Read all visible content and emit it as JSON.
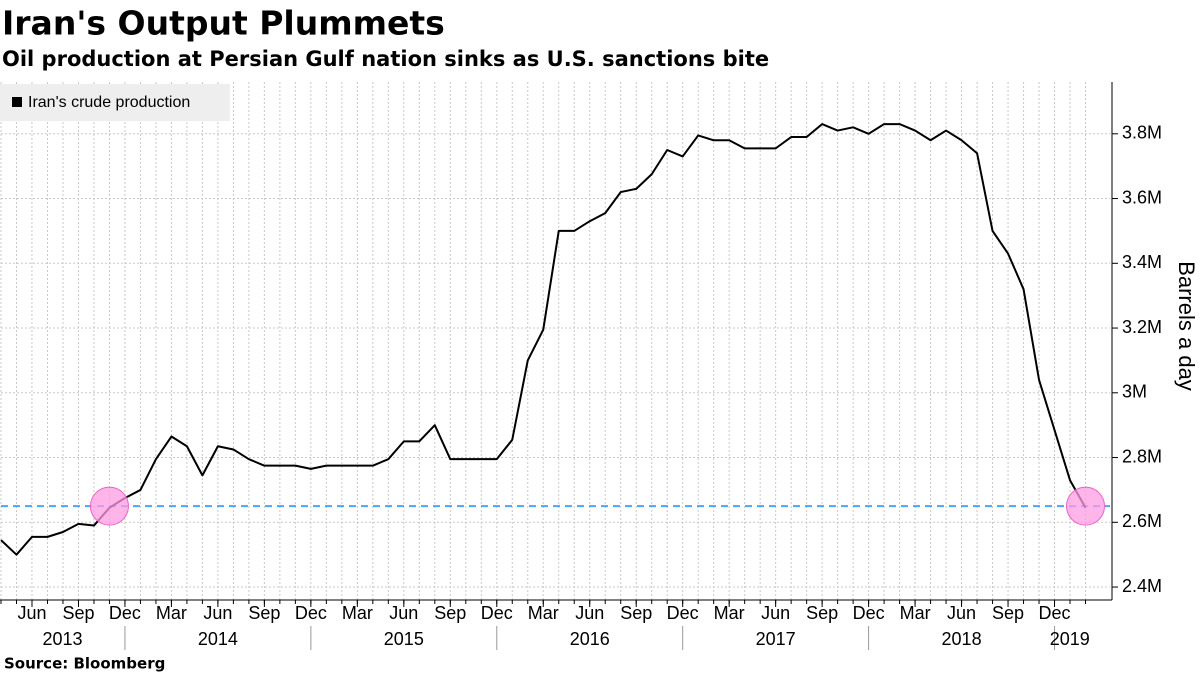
{
  "chart_data": {
    "type": "line",
    "title": "Iran's Output Plummets",
    "subtitle": "Oil production at Persian Gulf nation sinks as U.S. sanctions bite",
    "source": "Source: Bloomberg",
    "y_label": "Barrels a day",
    "x": [
      "2013-04",
      "2013-05",
      "2013-06",
      "2013-07",
      "2013-08",
      "2013-09",
      "2013-10",
      "2013-11",
      "2013-12",
      "2014-01",
      "2014-02",
      "2014-03",
      "2014-04",
      "2014-05",
      "2014-06",
      "2014-07",
      "2014-08",
      "2014-09",
      "2014-10",
      "2014-11",
      "2014-12",
      "2015-01",
      "2015-02",
      "2015-03",
      "2015-04",
      "2015-05",
      "2015-06",
      "2015-07",
      "2015-08",
      "2015-09",
      "2015-10",
      "2015-11",
      "2015-12",
      "2016-01",
      "2016-02",
      "2016-03",
      "2016-04",
      "2016-05",
      "2016-06",
      "2016-07",
      "2016-08",
      "2016-09",
      "2016-10",
      "2016-11",
      "2016-12",
      "2017-01",
      "2017-02",
      "2017-03",
      "2017-04",
      "2017-05",
      "2017-06",
      "2017-07",
      "2017-08",
      "2017-09",
      "2017-10",
      "2017-11",
      "2017-12",
      "2018-01",
      "2018-02",
      "2018-03",
      "2018-04",
      "2018-05",
      "2018-06",
      "2018-07",
      "2018-08",
      "2018-09",
      "2018-10",
      "2018-11",
      "2018-12",
      "2019-01",
      "2019-02"
    ],
    "series": [
      {
        "name": "Iran's crude production",
        "color": "#000000",
        "values": [
          2545000,
          2500000,
          2555000,
          2555000,
          2570000,
          2595000,
          2590000,
          2645000,
          2675000,
          2700000,
          2795000,
          2865000,
          2835000,
          2745000,
          2835000,
          2825000,
          2795000,
          2775000,
          2775000,
          2775000,
          2765000,
          2775000,
          2775000,
          2775000,
          2775000,
          2795000,
          2850000,
          2850000,
          2900000,
          2795000,
          2795000,
          2795000,
          2795000,
          2855000,
          3100000,
          3195000,
          3500000,
          3500000,
          3530000,
          3555000,
          3620000,
          3630000,
          3675000,
          3750000,
          3730000,
          3795000,
          3780000,
          3780000,
          3755000,
          3755000,
          3755000,
          3790000,
          3790000,
          3830000,
          3810000,
          3820000,
          3800000,
          3830000,
          3830000,
          3810000,
          3780000,
          3810000,
          3780000,
          3740000,
          3500000,
          3430000,
          3320000,
          3040000,
          2885000,
          2730000,
          2645000
        ]
      }
    ],
    "xlim": [
      "2013-04",
      "2019-03"
    ],
    "xticks": [
      {
        "value": "2013-06",
        "label": "Jun"
      },
      {
        "value": "2013-09",
        "label": "Sep"
      },
      {
        "value": "2013-12",
        "label": "Dec"
      },
      {
        "value": "2014-03",
        "label": "Mar"
      },
      {
        "value": "2014-06",
        "label": "Jun"
      },
      {
        "value": "2014-09",
        "label": "Sep"
      },
      {
        "value": "2014-12",
        "label": "Dec"
      },
      {
        "value": "2015-03",
        "label": "Mar"
      },
      {
        "value": "2015-06",
        "label": "Jun"
      },
      {
        "value": "2015-09",
        "label": "Sep"
      },
      {
        "value": "2015-12",
        "label": "Dec"
      },
      {
        "value": "2016-03",
        "label": "Mar"
      },
      {
        "value": "2016-06",
        "label": "Jun"
      },
      {
        "value": "2016-09",
        "label": "Sep"
      },
      {
        "value": "2016-12",
        "label": "Dec"
      },
      {
        "value": "2017-03",
        "label": "Mar"
      },
      {
        "value": "2017-06",
        "label": "Jun"
      },
      {
        "value": "2017-09",
        "label": "Sep"
      },
      {
        "value": "2017-12",
        "label": "Dec"
      },
      {
        "value": "2018-03",
        "label": "Mar"
      },
      {
        "value": "2018-06",
        "label": "Jun"
      },
      {
        "value": "2018-09",
        "label": "Sep"
      },
      {
        "value": "2018-12",
        "label": "Dec"
      }
    ],
    "years": [
      "2013",
      "2014",
      "2015",
      "2016",
      "2017",
      "2018",
      "2019"
    ],
    "ylim": [
      2360000,
      3960000
    ],
    "yticks": [
      {
        "value": 2400000,
        "label": "2.4M"
      },
      {
        "value": 2600000,
        "label": "2.6M"
      },
      {
        "value": 2800000,
        "label": "2.8M"
      },
      {
        "value": 3000000,
        "label": "3M"
      },
      {
        "value": 3200000,
        "label": "3.2M"
      },
      {
        "value": 3400000,
        "label": "3.4M"
      },
      {
        "value": 3600000,
        "label": "3.6M"
      },
      {
        "value": 3800000,
        "label": "3.8M"
      }
    ],
    "y_axis_side": "right",
    "grid": true,
    "legend": "top-left",
    "reference_line": {
      "value": 2650000,
      "color": "#4da3ff"
    },
    "highlights": [
      {
        "x": "2013-11",
        "y": 2650000
      },
      {
        "x": "2019-02",
        "y": 2650000
      }
    ],
    "highlight_color": "#ff9be3"
  }
}
